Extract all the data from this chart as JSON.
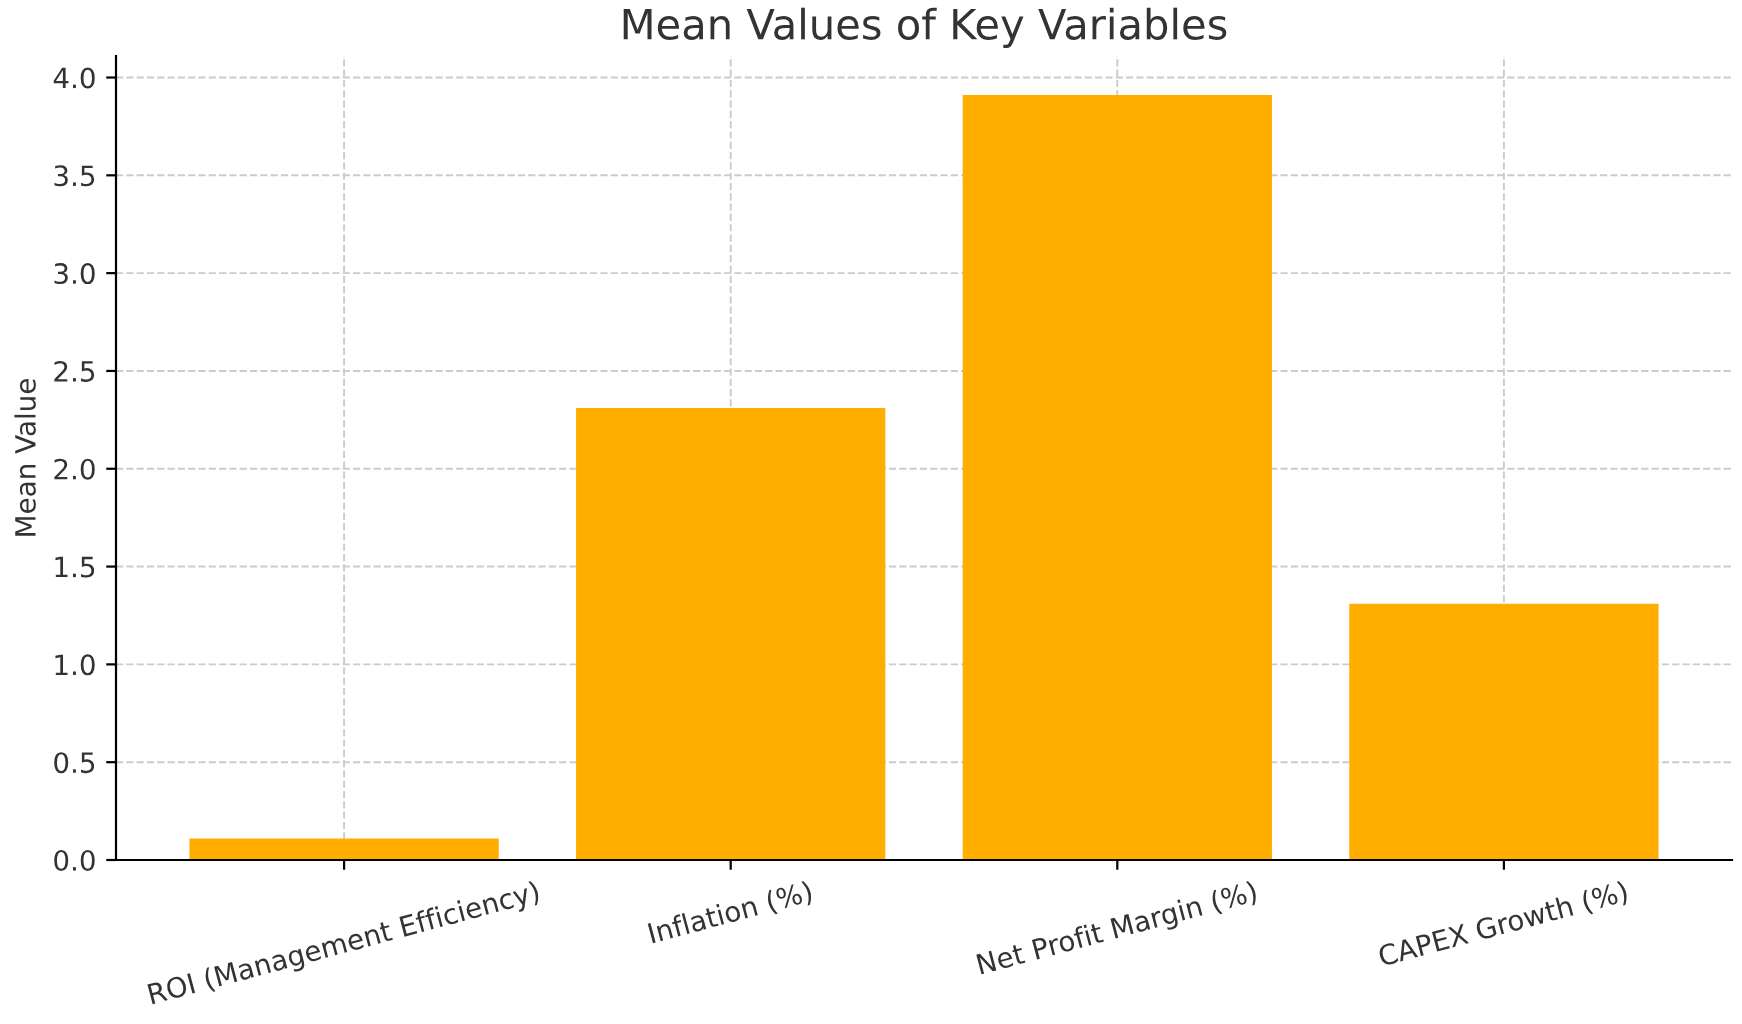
{
  "chart_data": {
    "type": "bar",
    "title": "Mean Values of Key Variables",
    "ylabel": "Mean Value",
    "categories": [
      "ROI (Management Efficiency)",
      "Inflation (%)",
      "Net Profit Margin (%)",
      "CAPEX Growth (%)"
    ],
    "values": [
      0.11,
      2.31,
      3.91,
      1.31
    ],
    "color": "#ffae00",
    "ylim": [
      0,
      4.11
    ],
    "yticks": [
      {
        "value": 0,
        "label": "0.0"
      },
      {
        "value": 0.5,
        "label": "0.5"
      },
      {
        "value": 1,
        "label": "1.0"
      },
      {
        "value": 1.5,
        "label": "1.5"
      },
      {
        "value": 2,
        "label": "2.0"
      },
      {
        "value": 2.5,
        "label": "2.5"
      },
      {
        "value": 3,
        "label": "3.0"
      },
      {
        "value": 3.5,
        "label": "3.5"
      },
      {
        "value": 4,
        "label": "4.0"
      }
    ],
    "grid": true,
    "legend": false
  }
}
